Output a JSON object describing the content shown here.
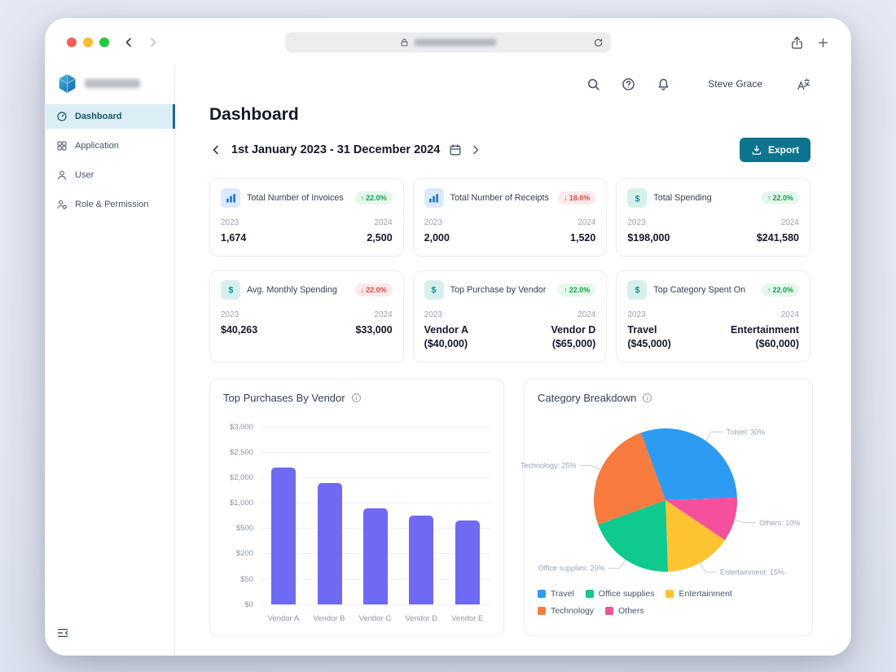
{
  "header": {
    "user_name": "Steve Grace",
    "icons": [
      "search",
      "help",
      "notifications",
      "translate"
    ]
  },
  "sidebar": {
    "items": [
      {
        "label": "Dashboard",
        "icon": "dashboard",
        "active": true
      },
      {
        "label": "Application",
        "icon": "application",
        "active": false
      },
      {
        "label": "User",
        "icon": "user",
        "active": false
      },
      {
        "label": "Role & Permission",
        "icon": "role",
        "active": false
      }
    ]
  },
  "page": {
    "title": "Dashboard",
    "date_range": "1st January 2023 - 31 December 2024",
    "export_label": "Export"
  },
  "stat_cards": [
    {
      "title": "Total Number of Invoices",
      "icon": "bar-chart",
      "badge": {
        "trend": "up",
        "label": "22.0%"
      },
      "left": {
        "year": "2023",
        "value": "1,674"
      },
      "right": {
        "year": "2024",
        "value": "2,500"
      }
    },
    {
      "title": "Total Number of Receipts",
      "icon": "bar-chart",
      "badge": {
        "trend": "down",
        "label": "18.0%"
      },
      "left": {
        "year": "2023",
        "value": "2,000"
      },
      "right": {
        "year": "2024",
        "value": "1,520"
      }
    },
    {
      "title": "Total Spending",
      "icon": "dollar",
      "badge": {
        "trend": "up",
        "label": "22.0%"
      },
      "left": {
        "year": "2023",
        "value": "$198,000"
      },
      "right": {
        "year": "2024",
        "value": "$241,580"
      }
    },
    {
      "title": "Avg. Monthly Spending",
      "icon": "dollar",
      "badge": {
        "trend": "down",
        "label": "22.0%"
      },
      "left": {
        "year": "2023",
        "value": "$40,263"
      },
      "right": {
        "year": "2024",
        "value": "$33,000"
      }
    },
    {
      "title": "Top Purchase by Vendor",
      "icon": "dollar",
      "badge": {
        "trend": "up",
        "label": "22.0%"
      },
      "left": {
        "year": "2023",
        "value": "Vendor A\n($40,000)"
      },
      "right": {
        "year": "2024",
        "value": "Vendor D\n($65,000)"
      }
    },
    {
      "title": "Top Category Spent On",
      "icon": "dollar",
      "badge": {
        "trend": "up",
        "label": "22.0%"
      },
      "left": {
        "year": "2023",
        "value": "Travel\n($45,000)"
      },
      "right": {
        "year": "2024",
        "value": "Entertainment\n($60,000)"
      }
    }
  ],
  "chart_data": [
    {
      "type": "bar",
      "title": "Top Purchases By Vendor",
      "categories": [
        "Vendor A",
        "Vendor B",
        "Vendor C",
        "Vendor D",
        "Vendor E"
      ],
      "values": [
        2200,
        1800,
        900,
        750,
        650
      ],
      "y_ticks": [
        {
          "label": "$3,000",
          "value": 3000
        },
        {
          "label": "$2,500",
          "value": 2500
        },
        {
          "label": "$2,000",
          "value": 2000
        },
        {
          "label": "$1,000",
          "value": 1000
        },
        {
          "label": "$500",
          "value": 500
        },
        {
          "label": "$200",
          "value": 200
        },
        {
          "label": "$50",
          "value": 50
        },
        {
          "label": "$0",
          "value": 0
        }
      ],
      "bar_color": "#6f6af2",
      "grid": true,
      "xlabel": "",
      "ylabel": ""
    },
    {
      "type": "pie",
      "title": "Category Breakdown",
      "slices": [
        {
          "label": "Travel",
          "percent": 30,
          "color": "#2e9bf2",
          "callout": "Travel: 30%"
        },
        {
          "label": "Others",
          "percent": 10,
          "color": "#f5509c",
          "callout": "Others: 10%"
        },
        {
          "label": "Entertainment",
          "percent": 15,
          "color": "#fdc330",
          "callout": "Entertainment: 15%"
        },
        {
          "label": "Office supplies",
          "percent": 20,
          "color": "#0fc98f",
          "callout": "Office supplies: 20%"
        },
        {
          "label": "Technology",
          "percent": 25,
          "color": "#f87b3f",
          "callout": "Technology: 25%"
        }
      ],
      "start_angle_deg": -20,
      "legend_order": [
        0,
        3,
        2,
        4,
        1
      ],
      "legend_position": "bottom"
    }
  ],
  "colors": {
    "accent_teal": "#0d7490",
    "bar_purple": "#6f6af2",
    "badge_up_bg": "#e4f8ec",
    "badge_up_text": "#12a150",
    "badge_down_bg": "#fdeaea",
    "badge_down_text": "#ef4444",
    "sidebar_active_bg": "#dbeef5",
    "sidebar_active_accent": "#176b87"
  }
}
